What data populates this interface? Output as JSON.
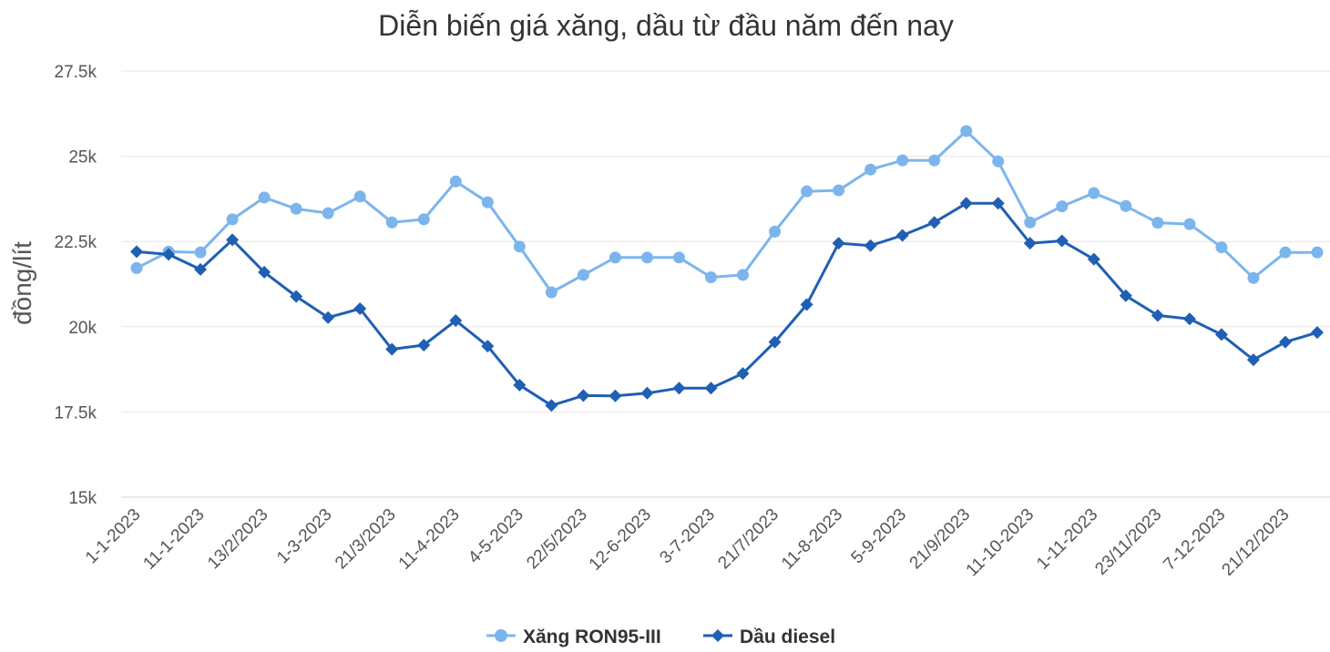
{
  "chart_data": {
    "type": "line",
    "title": "Diễn biến giá xăng, dầu từ đầu năm đến nay",
    "xlabel": "",
    "ylabel": "đồng/lít",
    "ylim": [
      15000,
      27500
    ],
    "yticks": [
      15000,
      17500,
      20000,
      22500,
      25000,
      27500
    ],
    "ytick_labels": [
      "15k",
      "17.5k",
      "20k",
      "22.5k",
      "25k",
      "27.5k"
    ],
    "grid": "horizontal",
    "legend_position": "bottom-center",
    "x_tick_labels": [
      "1-1-2023",
      "11-1-2023",
      "13/2/2023",
      "1-3-2023",
      "21/3/2023",
      "11-4-2023",
      "4-5-2023",
      "22/5/2023",
      "12-6-2023",
      "3-7-2023",
      "21/7/2023",
      "11-8-2023",
      "5-9-2023",
      "21/9/2023",
      "11-10-2023",
      "1-11-2023",
      "23/11/2023",
      "7-12-2023",
      "21/12/2023"
    ],
    "point_count": 38,
    "series": [
      {
        "name": "Xăng RON95-III",
        "color": "#7cb5ec",
        "marker": "circle",
        "values": [
          21720,
          22200,
          22180,
          23150,
          23790,
          23460,
          23330,
          23820,
          23060,
          23150,
          24260,
          23650,
          22350,
          21010,
          21520,
          22030,
          22030,
          22030,
          21450,
          21520,
          22790,
          23970,
          24000,
          24610,
          24880,
          24880,
          25740,
          24850,
          23060,
          23530,
          23920,
          23540,
          23050,
          23010,
          22330,
          21430,
          22180,
          22180
        ]
      },
      {
        "name": "Dầu diesel",
        "color": "#1f5fb4",
        "marker": "diamond",
        "values": [
          22200,
          22120,
          21680,
          22550,
          21600,
          20890,
          20270,
          20530,
          19340,
          19460,
          20180,
          19430,
          18290,
          17690,
          17980,
          17970,
          18050,
          18200,
          18200,
          18630,
          19550,
          20650,
          22450,
          22380,
          22680,
          23060,
          23620,
          23620,
          22450,
          22520,
          21980,
          20910,
          20330,
          20230,
          19770,
          19030,
          19550,
          19830
        ]
      }
    ]
  }
}
